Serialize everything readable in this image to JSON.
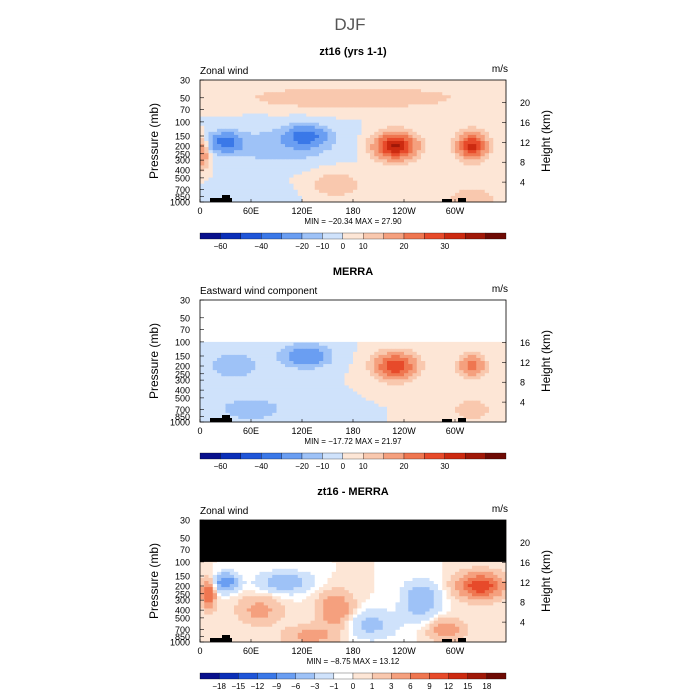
{
  "figure_title": "DJF",
  "colors": {
    "wind_scale": [
      "#08108c",
      "#0a2fb8",
      "#1f55d8",
      "#3a78e8",
      "#6a9ef2",
      "#9ec2f7",
      "#cfe2fb",
      "#fde6d6",
      "#f9c8ae",
      "#f5a07e",
      "#ef7650",
      "#e74a2a",
      "#cc2a10",
      "#a01808",
      "#6e0a04"
    ],
    "diff_scale": [
      "#08108c",
      "#0a2fb8",
      "#1f55d8",
      "#3a78e8",
      "#6a9ef2",
      "#9ec2f7",
      "#cfe2fb",
      "#ffffff",
      "#fde6d6",
      "#f9c8ae",
      "#f5a07e",
      "#ef7650",
      "#e74a2a",
      "#cc2a10",
      "#a01808",
      "#6e0a04"
    ],
    "mask": "#000000"
  },
  "chart_data": [
    {
      "type": "heatmap",
      "title": "zt16 (yrs 1-1)",
      "field_label": "Zonal wind",
      "units": "m/s",
      "ylabel": "Pressure (mb)",
      "y2label": "Height (km)",
      "x_ticks": [
        "0",
        "60E",
        "120E",
        "180",
        "120W",
        "60W"
      ],
      "y_ticks": [
        "30",
        "50",
        "70",
        "100",
        "150",
        "200",
        "250",
        "300",
        "400",
        "500",
        "700",
        "850",
        "1000"
      ],
      "y2_ticks": [
        "4",
        "8",
        "12",
        "16",
        "20"
      ],
      "stats": "MIN = −20.34   MAX =  27.90",
      "min": -20.34,
      "max": 27.9,
      "ylim": [
        1000,
        30
      ],
      "colorbar_ticks": [
        "−60",
        "−40",
        "−20",
        "−10",
        "0",
        "10",
        "20",
        "30"
      ],
      "features": [
        {
          "type": "blob",
          "lon": 30,
          "p": 180,
          "amp": -12,
          "wlon": 18,
          "wp": 0.28
        },
        {
          "type": "blob",
          "lon": 125,
          "p": 150,
          "amp": -12,
          "wlon": 22,
          "wp": 0.28
        },
        {
          "type": "blob",
          "lon": 95,
          "p": 200,
          "amp": -4,
          "wlon": 60,
          "wp": 0.5
        },
        {
          "type": "blob",
          "lon": 230,
          "p": 200,
          "amp": 26,
          "wlon": 22,
          "wp": 0.35
        },
        {
          "type": "blob",
          "lon": 320,
          "p": 200,
          "amp": 22,
          "wlon": 16,
          "wp": 0.35
        },
        {
          "type": "blob",
          "lon": 2,
          "p": 250,
          "amp": 10,
          "wlon": 8,
          "wp": 0.4
        },
        {
          "type": "blob",
          "lon": 180,
          "p": 50,
          "amp": 5,
          "wlon": 120,
          "wp": 0.3
        },
        {
          "type": "blob",
          "lon": 160,
          "p": 600,
          "amp": 4,
          "wlon": 30,
          "wp": 0.4
        },
        {
          "type": "blob",
          "lon": 320,
          "p": 900,
          "amp": 4,
          "wlon": 30,
          "wp": 0.3
        },
        {
          "type": "blob",
          "lon": 60,
          "p": 800,
          "amp": -2,
          "wlon": 40,
          "wp": 0.3
        }
      ],
      "mask_above_p": null,
      "topography": true
    },
    {
      "type": "heatmap",
      "title": "MERRA",
      "field_label": "Eastward wind component",
      "units": "m/s",
      "ylabel": "Pressure (mb)",
      "y2label": "Height (km)",
      "x_ticks": [
        "0",
        "60E",
        "120E",
        "180",
        "120W",
        "60W"
      ],
      "y_ticks": [
        "30",
        "50",
        "70",
        "100",
        "150",
        "200",
        "250",
        "300",
        "400",
        "500",
        "700",
        "850",
        "1000"
      ],
      "y2_ticks": [
        "4",
        "8",
        "12",
        "16"
      ],
      "stats": "MIN = −17.72   MAX =  21.97",
      "min": -17.72,
      "max": 21.97,
      "ylim": [
        1000,
        30
      ],
      "colorbar_ticks": [
        "−60",
        "−40",
        "−20",
        "−10",
        "0",
        "10",
        "20",
        "30"
      ],
      "features": [
        {
          "type": "blob",
          "lon": 125,
          "p": 150,
          "amp": -10,
          "wlon": 25,
          "wp": 0.3
        },
        {
          "type": "blob",
          "lon": 40,
          "p": 200,
          "amp": -3,
          "wlon": 40,
          "wp": 0.5
        },
        {
          "type": "blob",
          "lon": 230,
          "p": 200,
          "amp": 20,
          "wlon": 22,
          "wp": 0.35
        },
        {
          "type": "blob",
          "lon": 320,
          "p": 200,
          "amp": 13,
          "wlon": 14,
          "wp": 0.3
        },
        {
          "type": "blob",
          "lon": 320,
          "p": 700,
          "amp": 3,
          "wlon": 30,
          "wp": 0.4
        },
        {
          "type": "blob",
          "lon": 60,
          "p": 700,
          "amp": -3,
          "wlon": 50,
          "wp": 0.4
        }
      ],
      "mask_above_p": 100,
      "mask_color": "white",
      "topography": true
    },
    {
      "type": "heatmap",
      "title": "zt16 - MERRA",
      "field_label": "Zonal wind",
      "units": "m/s",
      "ylabel": "Pressure (mb)",
      "y2label": "Height (km)",
      "x_ticks": [
        "0",
        "60E",
        "120E",
        "180",
        "120W",
        "60W"
      ],
      "y_ticks": [
        "30",
        "50",
        "70",
        "100",
        "150",
        "200",
        "250",
        "300",
        "400",
        "500",
        "700",
        "850",
        "1000"
      ],
      "y2_ticks": [
        "4",
        "8",
        "12",
        "16",
        "20"
      ],
      "stats": "MIN =  −8.75   MAX =  13.12",
      "min": -8.75,
      "max": 13.12,
      "ylim": [
        1000,
        30
      ],
      "colorbar_ticks": [
        "−18",
        "−15",
        "−12",
        "−9",
        "−6",
        "−3",
        "−1",
        "0",
        "1",
        "3",
        "6",
        "9",
        "12",
        "15",
        "18"
      ],
      "features": [
        {
          "type": "blob",
          "lon": 30,
          "p": 180,
          "amp": -9,
          "wlon": 14,
          "wp": 0.25
        },
        {
          "type": "blob",
          "lon": 10,
          "p": 250,
          "amp": 9,
          "wlon": 8,
          "wp": 0.4
        },
        {
          "type": "blob",
          "lon": 330,
          "p": 200,
          "amp": 12,
          "wlon": 25,
          "wp": 0.35
        },
        {
          "type": "blob",
          "lon": 100,
          "p": 180,
          "amp": -5,
          "wlon": 30,
          "wp": 0.3
        },
        {
          "type": "blob",
          "lon": 160,
          "p": 400,
          "amp": 6,
          "wlon": 20,
          "wp": 0.5
        },
        {
          "type": "blob",
          "lon": 260,
          "p": 300,
          "amp": -6,
          "wlon": 20,
          "wp": 0.5
        },
        {
          "type": "blob",
          "lon": 200,
          "p": 600,
          "amp": -4,
          "wlon": 30,
          "wp": 0.4
        },
        {
          "type": "blob",
          "lon": 70,
          "p": 400,
          "amp": 4,
          "wlon": 25,
          "wp": 0.4
        },
        {
          "type": "blob",
          "lon": 290,
          "p": 700,
          "amp": 5,
          "wlon": 20,
          "wp": 0.3
        },
        {
          "type": "blob",
          "lon": 130,
          "p": 850,
          "amp": 4,
          "wlon": 30,
          "wp": 0.3
        }
      ],
      "mask_above_p": 100,
      "mask_color": "black",
      "topography": true
    }
  ]
}
